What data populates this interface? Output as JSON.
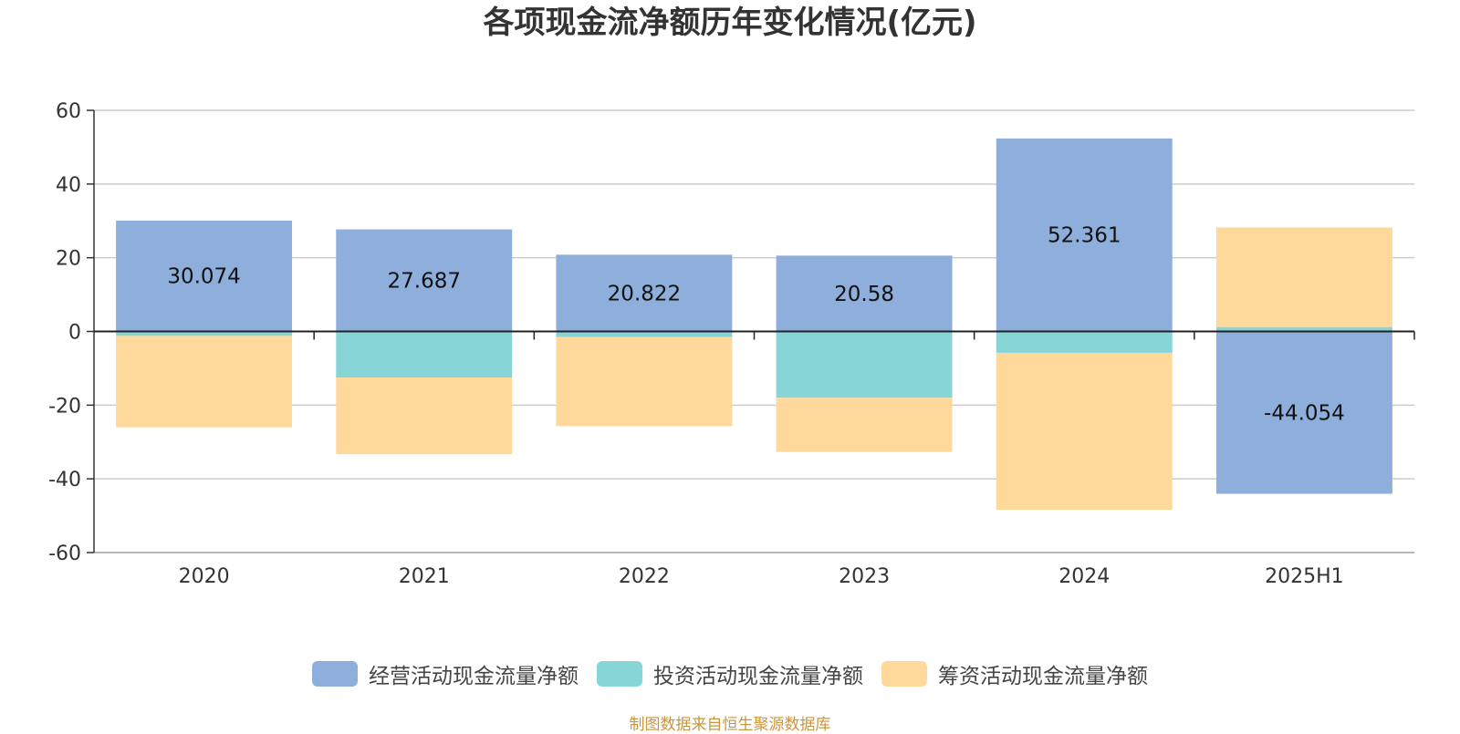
{
  "chart_data": {
    "type": "bar",
    "stacked": true,
    "title": "各项现金流净额历年变化情况(亿元)",
    "categories": [
      "2020",
      "2021",
      "2022",
      "2023",
      "2024",
      "2025H1"
    ],
    "ylim": [
      -60,
      60
    ],
    "yticks": [
      60,
      40,
      20,
      0,
      -20,
      -40,
      -60
    ],
    "grid": true,
    "legend_position": "bottom-center",
    "series": [
      {
        "name": "经营活动现金流量净额",
        "color": "#8eaedb",
        "values": [
          30.074,
          27.687,
          20.822,
          20.58,
          52.361,
          -44.054
        ],
        "labels": [
          "30.074",
          "27.687",
          "20.822",
          "20.58",
          "52.361",
          "-44.054"
        ]
      },
      {
        "name": "投资活动现金流量净额",
        "color": "#88d5d8",
        "values": [
          -1.2,
          -12.5,
          -1.5,
          -18.0,
          -5.8,
          1.2
        ]
      },
      {
        "name": "筹资活动现金流量净额",
        "color": "#fed99b",
        "values": [
          -24.8,
          -20.8,
          -24.2,
          -14.7,
          -42.6,
          27.0
        ]
      }
    ]
  },
  "source": "制图数据来自恒生聚源数据库"
}
